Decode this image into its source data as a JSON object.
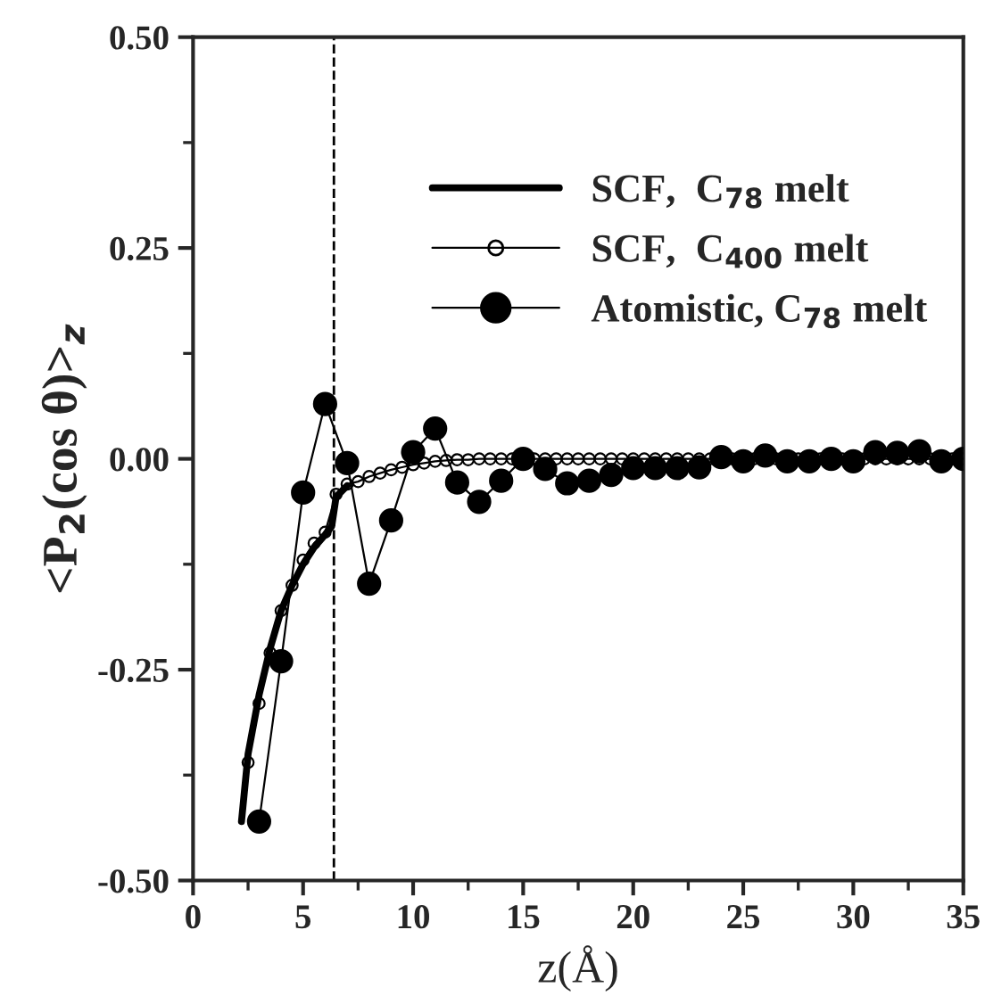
{
  "chart_data": {
    "type": "line",
    "xlabel": "z(Å)",
    "ylabel": "<P$_{2}$(cos θ)>$_{z}$",
    "xlim": [
      0,
      35
    ],
    "xticks": [
      0,
      5,
      10,
      15,
      20,
      25,
      30,
      35
    ],
    "ylim": [
      -0.5,
      0.5
    ],
    "yticks": [
      {
        "value": -0.5,
        "label": "-0.50"
      },
      {
        "value": -0.25,
        "label": "-0.25"
      },
      {
        "value": 0,
        "label": "0.00"
      },
      {
        "value": 0.25,
        "label": "0.25"
      },
      {
        "value": 0.5,
        "label": "0.50"
      }
    ],
    "legend": "top right",
    "grid": false,
    "ref_lines": [
      {
        "axis": "x",
        "value": 6.4,
        "line_style": "dashed",
        "color": "#000000"
      }
    ],
    "series": [
      {
        "name": "SCF,  C$_{78}$ melt",
        "color": "#000000",
        "marker": "none",
        "line_style": "solid",
        "x": [
          2.2,
          2.5,
          3,
          3.5,
          4,
          4.5,
          5,
          5.5,
          6,
          6.3,
          6.5,
          7
        ],
        "values": [
          -0.43,
          -0.35,
          -0.28,
          -0.225,
          -0.18,
          -0.15,
          -0.125,
          -0.105,
          -0.09,
          -0.08,
          -0.045,
          -0.032
        ]
      },
      {
        "name": "SCF,  C$_{400}$ melt",
        "color": "#000000",
        "marker": "circle",
        "line_style": "solid",
        "x": [
          2.5,
          3,
          3.5,
          4,
          4.5,
          5,
          5.5,
          6,
          6.5,
          7,
          7.5,
          8,
          8.5,
          9,
          9.5,
          10,
          10.5,
          11,
          11.5,
          12,
          12.5,
          13,
          13.5,
          14,
          14.5,
          15,
          15.5,
          16,
          16.5,
          17,
          17.5,
          18,
          18.5,
          19,
          19.5,
          20,
          20.5,
          21,
          21.5,
          22,
          22.5,
          23,
          23.5,
          24,
          24.5,
          25,
          25.5,
          26,
          26.5,
          27,
          27.5,
          28,
          28.5,
          29,
          29.5,
          30,
          30.5,
          31,
          31.5,
          32,
          32.5,
          33,
          33.5,
          34,
          34.5,
          35
        ],
        "values": [
          -0.36,
          -0.29,
          -0.23,
          -0.18,
          -0.15,
          -0.12,
          -0.1,
          -0.087,
          -0.042,
          -0.03,
          -0.027,
          -0.021,
          -0.017,
          -0.013,
          -0.01,
          -0.007,
          -0.005,
          -0.003,
          -0.002,
          -0.001,
          -0.001,
          0,
          0,
          0,
          0,
          0,
          0,
          0,
          0,
          0,
          0,
          0,
          0,
          0,
          0,
          0,
          0,
          0,
          0,
          0,
          0,
          0,
          0,
          0,
          0,
          0,
          0,
          0,
          0,
          0,
          0,
          0,
          0,
          0,
          0,
          0,
          0,
          0,
          0,
          0,
          0,
          0,
          0,
          0,
          0,
          0
        ]
      },
      {
        "name": "Atomistic, C$_{78}$ melt",
        "color": "#000000",
        "marker": "circle",
        "line_style": "solid",
        "x": [
          3,
          4,
          5,
          6,
          7,
          8,
          9,
          10,
          11,
          12,
          13,
          14,
          15,
          16,
          17,
          18,
          19,
          20,
          21,
          22,
          23,
          24,
          25,
          26,
          27,
          28,
          29,
          30,
          31,
          32,
          33,
          34,
          35
        ],
        "values": [
          -0.43,
          -0.24,
          -0.04,
          0.065,
          -0.005,
          -0.148,
          -0.073,
          0.008,
          0.036,
          -0.028,
          -0.051,
          -0.026,
          0,
          -0.012,
          -0.029,
          -0.026,
          -0.019,
          -0.011,
          -0.011,
          -0.011,
          -0.01,
          0.002,
          -0.003,
          0.004,
          -0.003,
          -0.003,
          0,
          -0.003,
          0.008,
          0.007,
          0.009,
          -0.003,
          0
        ]
      }
    ]
  }
}
